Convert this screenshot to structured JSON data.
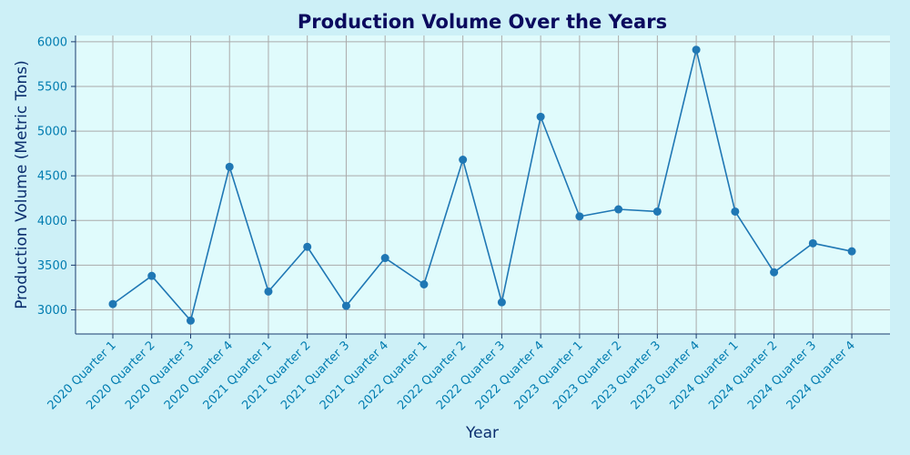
{
  "colors": {
    "figure_background": "#cdf0f7",
    "plot_background": "#e0fbfc",
    "title": "#0b0a5e",
    "axis_label": "#0b2e6e",
    "tick_label": "#007cb0",
    "axis_line": "#1a3b6e",
    "grid": "#aaaaaa",
    "series": "#1f77b4"
  },
  "chart_data": {
    "type": "line",
    "title": "Production Volume Over the Years",
    "xlabel": "Year",
    "ylabel": "Production Volume (Metric Tons)",
    "categories": [
      "2020 Quarter 1",
      "2020 Quarter 2",
      "2020 Quarter 3",
      "2020 Quarter 4",
      "2021 Quarter 1",
      "2021 Quarter 2",
      "2021 Quarter 3",
      "2021 Quarter 4",
      "2022 Quarter 1",
      "2022 Quarter 2",
      "2022 Quarter 3",
      "2022 Quarter 4",
      "2023 Quarter 1",
      "2023 Quarter 2",
      "2023 Quarter 3",
      "2023 Quarter 4",
      "2024 Quarter 1",
      "2024 Quarter 2",
      "2024 Quarter 3",
      "2024 Quarter 4"
    ],
    "values": [
      3065,
      3380,
      2880,
      4600,
      3205,
      3705,
      3045,
      3580,
      3285,
      4680,
      3085,
      5160,
      4045,
      4125,
      4100,
      5910,
      4100,
      3420,
      3745,
      3655
    ],
    "yticks": [
      3000,
      3500,
      4000,
      4500,
      5000,
      5500,
      6000
    ],
    "ylim": [
      2730,
      6070
    ],
    "grid": true,
    "marker": "circle"
  }
}
